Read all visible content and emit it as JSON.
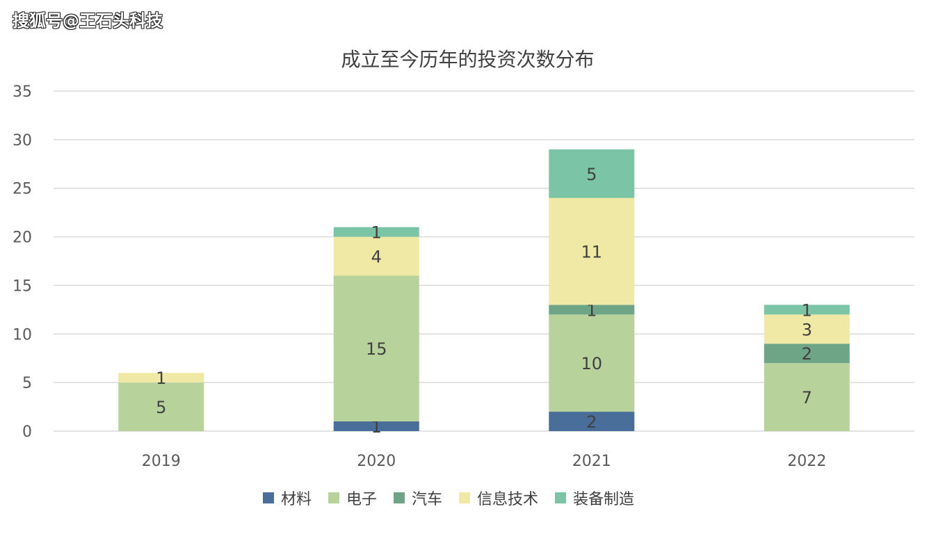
{
  "watermark": "搜狐号@王石头科技",
  "chart_data": {
    "type": "bar",
    "stacked": true,
    "title": "成立至今历年的投资次数分布",
    "categories": [
      "2019",
      "2020",
      "2021",
      "2022"
    ],
    "ylim": [
      0,
      35
    ],
    "yticks": [
      0,
      5,
      10,
      15,
      20,
      25,
      30,
      35
    ],
    "grid": true,
    "legend_position": "bottom",
    "series": [
      {
        "name": "材料",
        "color": "#4a6e9a",
        "values": [
          0,
          1,
          2,
          0
        ]
      },
      {
        "name": "电子",
        "color": "#b8d29c",
        "values": [
          5,
          15,
          10,
          7
        ]
      },
      {
        "name": "汽车",
        "color": "#6fa587",
        "values": [
          0,
          0,
          1,
          2
        ]
      },
      {
        "name": "信息技术",
        "color": "#f0e9a6",
        "values": [
          1,
          4,
          11,
          3
        ]
      },
      {
        "name": "装备制造",
        "color": "#7cc4a6",
        "values": [
          0,
          1,
          5,
          1
        ]
      }
    ]
  }
}
